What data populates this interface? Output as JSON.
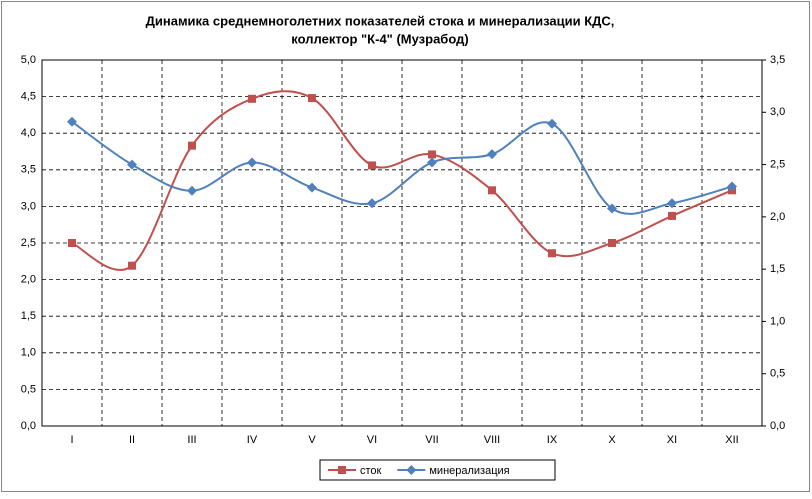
{
  "chart_data": {
    "type": "line",
    "title": "Динамика среднемноголетних показателей стока и минерализации КДС,",
    "subtitle": "коллектор \"К-4\" (Музрабод)",
    "categories": [
      "I",
      "II",
      "III",
      "IV",
      "V",
      "VI",
      "VII",
      "VIII",
      "IX",
      "X",
      "XI",
      "XII"
    ],
    "series": [
      {
        "name": "сток",
        "color": "#c0504d",
        "marker": "square",
        "values": [
          2.5,
          2.19,
          3.83,
          4.47,
          4.48,
          3.56,
          3.71,
          3.22,
          2.36,
          2.5,
          2.87,
          3.22
        ]
      },
      {
        "name": "минерализация",
        "color": "#4f81bd",
        "marker": "diamond",
        "axis": "y2",
        "values": [
          2.91,
          2.5,
          2.25,
          2.52,
          2.28,
          2.13,
          2.52,
          2.6,
          2.89,
          2.08,
          2.13,
          2.29
        ]
      }
    ],
    "ylim": [
      0,
      5
    ],
    "yticks": [
      {
        "value": 0,
        "label": "0,0"
      },
      {
        "value": 0.5,
        "label": "0,5"
      },
      {
        "value": 1,
        "label": "1,0"
      },
      {
        "value": 1.5,
        "label": "1,5"
      },
      {
        "value": 2,
        "label": "2,0"
      },
      {
        "value": 2.5,
        "label": "2,5"
      },
      {
        "value": 3,
        "label": "3,0"
      },
      {
        "value": 3.5,
        "label": "3,5"
      },
      {
        "value": 4,
        "label": "4,0"
      },
      {
        "value": 4.5,
        "label": "4,5"
      },
      {
        "value": 5,
        "label": "5,0"
      }
    ],
    "y2lim": [
      0,
      3.5
    ],
    "y2ticks": [
      {
        "value": 0,
        "label": "0,0"
      },
      {
        "value": 0.5,
        "label": "0,5"
      },
      {
        "value": 1,
        "label": "1,0"
      },
      {
        "value": 1.5,
        "label": "1,5"
      },
      {
        "value": 2,
        "label": "2,0"
      },
      {
        "value": 2.5,
        "label": "2,5"
      },
      {
        "value": 3,
        "label": "3,0"
      },
      {
        "value": 3.5,
        "label": "3,5"
      }
    ],
    "grid": true,
    "smooth": true,
    "legend": "bottom"
  }
}
